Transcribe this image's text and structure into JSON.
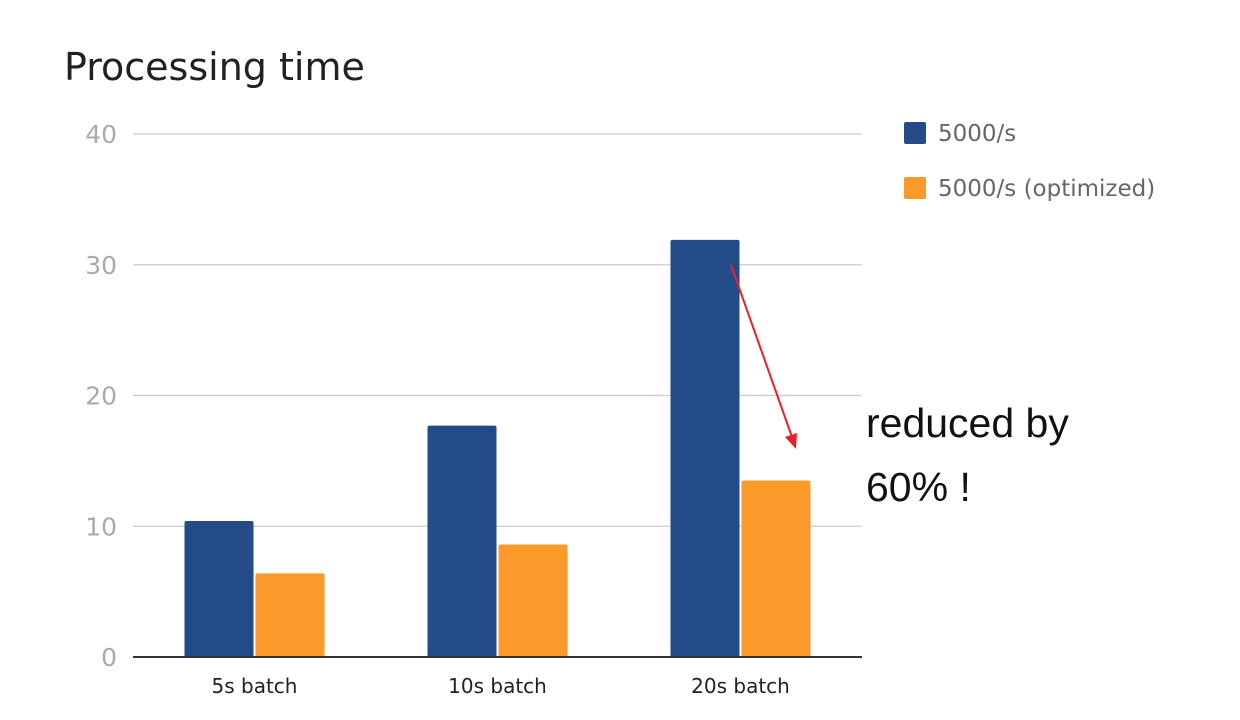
{
  "chart_data": {
    "type": "bar",
    "title": "Processing time",
    "categories": [
      "5s batch",
      "10s batch",
      "20s batch"
    ],
    "series": [
      {
        "name": "5000/s",
        "color": "#234b87",
        "values": [
          10.4,
          17.7,
          31.9
        ]
      },
      {
        "name": "5000/s (optimized)",
        "color": "#fb9a2a",
        "values": [
          6.4,
          8.6,
          13.5
        ]
      }
    ],
    "ylim": [
      0,
      40
    ],
    "yticks": [
      "0",
      "10",
      "20",
      "30",
      "40"
    ],
    "grid": true,
    "legend": "top-right",
    "annotation": {
      "lines": [
        "reduced by",
        "60% !"
      ],
      "arrow_color": "#e8202a"
    }
  }
}
